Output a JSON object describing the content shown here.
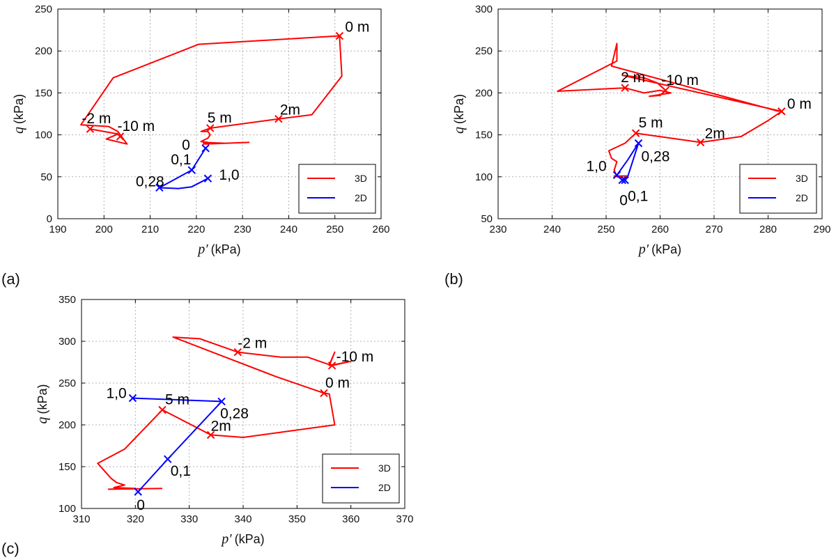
{
  "chart_data": [
    {
      "type": "line",
      "panel_label": "(a)",
      "xlabel_var": "p′",
      "xlabel_unit": "(kPa)",
      "ylabel_var": "q",
      "ylabel_unit": "(kPa)",
      "xlim": [
        190,
        260
      ],
      "ylim": [
        0,
        250
      ],
      "xticks": [
        190,
        200,
        210,
        220,
        230,
        240,
        250,
        260
      ],
      "yticks": [
        0,
        50,
        100,
        150,
        200,
        250
      ],
      "grid": true,
      "legend_position": "lower-right",
      "legend": [
        {
          "name": "3D",
          "color": "#ff0000"
        },
        {
          "name": "2D",
          "color": "#0000ff"
        }
      ],
      "series": [
        {
          "name": "3D",
          "color": "#ff0000",
          "points": [
            [
              231.5,
              91
            ],
            [
              222,
              89
            ],
            [
              226,
              90
            ],
            [
              221.5,
              91
            ],
            [
              224.5,
              90
            ],
            [
              221.5,
              89
            ],
            [
              222.5,
              91
            ],
            [
              221,
              92
            ],
            [
              222.5,
              96
            ],
            [
              223,
              100
            ],
            [
              222.5,
              104
            ],
            [
              221,
              104
            ],
            [
              222.5,
              107
            ],
            [
              223,
              108
            ],
            [
              237.8,
              119
            ],
            [
              245,
              124
            ],
            [
              251.5,
              170
            ],
            [
              251,
              218
            ],
            [
              220.5,
              208
            ],
            [
              202,
              168
            ],
            [
              195,
              112
            ],
            [
              201,
              110
            ],
            [
              203,
              104
            ],
            [
              205,
              89
            ],
            [
              200.5,
              95
            ],
            [
              203,
              101
            ],
            [
              198,
              106
            ],
            [
              197,
              107
            ]
          ]
        },
        {
          "name": "2D",
          "color": "#0000ff",
          "points": [
            [
              222,
              84
            ],
            [
              219,
              58
            ],
            [
              212,
              37
            ],
            [
              216,
              36
            ],
            [
              219,
              38
            ],
            [
              222.5,
              48
            ]
          ]
        }
      ],
      "markers": [
        {
          "x": 251,
          "y": 218,
          "color": "#ff0000",
          "label": "0 m"
        },
        {
          "x": 237.8,
          "y": 119,
          "color": "#ff0000",
          "label": "2m"
        },
        {
          "x": 223,
          "y": 108,
          "color": "#ff0000",
          "label": "5 m"
        },
        {
          "x": 197,
          "y": 107,
          "color": "#ff0000",
          "label": "-2 m"
        },
        {
          "x": 203.5,
          "y": 98,
          "color": "#ff0000",
          "label": "-10 m"
        },
        {
          "x": 222,
          "y": 84,
          "color": "#0000ff",
          "label": "0"
        },
        {
          "x": 219,
          "y": 58,
          "color": "#0000ff",
          "label": "0,1"
        },
        {
          "x": 212,
          "y": 37,
          "color": "#0000ff",
          "label": "0,28"
        },
        {
          "x": 222.5,
          "y": 48,
          "color": "#0000ff",
          "label": "1,0"
        }
      ]
    },
    {
      "type": "line",
      "panel_label": "(b)",
      "xlabel_var": "p′",
      "xlabel_unit": "(kPa)",
      "ylabel_var": "q",
      "ylabel_unit": "(kPa)",
      "xlim": [
        230,
        290
      ],
      "ylim": [
        50,
        300
      ],
      "xticks": [
        230,
        240,
        250,
        260,
        270,
        280,
        290
      ],
      "yticks": [
        50,
        100,
        150,
        200,
        250,
        300
      ],
      "grid": true,
      "legend_position": "lower-right",
      "legend": [
        {
          "name": "3D",
          "color": "#ff0000"
        },
        {
          "name": "2D",
          "color": "#0000ff"
        }
      ],
      "series": [
        {
          "name": "3D",
          "color": "#ff0000",
          "points": [
            [
              254,
              101
            ],
            [
              251.5,
              101
            ],
            [
              253,
              99
            ],
            [
              252,
              100
            ],
            [
              251.5,
              108
            ],
            [
              252,
              118
            ],
            [
              251,
              122
            ],
            [
              250.5,
              131
            ],
            [
              253.5,
              140
            ],
            [
              255.5,
              152
            ],
            [
              267.5,
              141
            ],
            [
              275,
              148
            ],
            [
              280,
              167
            ],
            [
              282.5,
              178
            ],
            [
              253,
              221
            ],
            [
              257,
              218
            ],
            [
              259.5,
              212
            ],
            [
              261,
              203
            ],
            [
              260,
              197
            ],
            [
              258,
              196
            ],
            [
              262,
              200
            ],
            [
              260,
              203
            ],
            [
              257,
              200
            ],
            [
              253.5,
              206
            ],
            [
              241,
              202
            ],
            [
              252,
              238
            ],
            [
              252,
              259
            ],
            [
              251,
              232
            ],
            [
              282,
              178
            ]
          ]
        },
        {
          "name": "2D",
          "color": "#0000ff",
          "points": [
            [
              256,
              140
            ],
            [
              254,
              120
            ],
            [
              252,
              102
            ],
            [
              253,
              96
            ],
            [
              254,
              100
            ],
            [
              256,
              140
            ]
          ]
        }
      ],
      "markers": [
        {
          "x": 282.5,
          "y": 178,
          "color": "#ff0000",
          "label": "0 m"
        },
        {
          "x": 267.5,
          "y": 141,
          "color": "#ff0000",
          "label": "2m"
        },
        {
          "x": 255.5,
          "y": 152,
          "color": "#ff0000",
          "label": "5 m"
        },
        {
          "x": 253.5,
          "y": 206,
          "color": "#ff0000",
          "label": "2 m"
        },
        {
          "x": 261,
          "y": 203,
          "color": "#ff0000",
          "label": "-10 m"
        },
        {
          "x": 256,
          "y": 140,
          "color": "#0000ff",
          "label": "0,28"
        },
        {
          "x": 252,
          "y": 102,
          "color": "#0000ff",
          "label": "1,0"
        },
        {
          "x": 253.5,
          "y": 96,
          "color": "#0000ff",
          "label": "0,1"
        },
        {
          "x": 253,
          "y": 96,
          "color": "#0000ff",
          "label": "0"
        }
      ]
    },
    {
      "type": "line",
      "panel_label": "(c)",
      "xlabel_var": "p′",
      "xlabel_unit": "(kPa)",
      "ylabel_var": "q",
      "ylabel_unit": "(kPa)",
      "xlim": [
        310,
        370
      ],
      "ylim": [
        100,
        350
      ],
      "xticks": [
        310,
        320,
        330,
        340,
        350,
        360,
        370
      ],
      "yticks": [
        100,
        150,
        200,
        250,
        300,
        350
      ],
      "grid": true,
      "legend_position": "lower-right",
      "legend": [
        {
          "name": "3D",
          "color": "#ff0000"
        },
        {
          "name": "2D",
          "color": "#0000ff"
        }
      ],
      "series": [
        {
          "name": "3D",
          "color": "#ff0000",
          "points": [
            [
              325,
              124
            ],
            [
              315,
              123
            ],
            [
              320,
              124
            ],
            [
              316,
              125
            ],
            [
              318,
              128
            ],
            [
              316.5,
              131
            ],
            [
              315.5,
              136
            ],
            [
              313,
              154
            ],
            [
              318,
              171
            ],
            [
              325,
              218
            ],
            [
              334,
              188
            ],
            [
              340,
              185
            ],
            [
              357,
              200
            ],
            [
              356,
              237
            ],
            [
              355,
              238
            ],
            [
              346,
              258
            ],
            [
              327,
              305
            ],
            [
              332,
              303
            ],
            [
              339,
              287
            ],
            [
              347,
              281
            ],
            [
              352,
              281
            ],
            [
              356,
              272
            ],
            [
              357,
              287
            ],
            [
              356,
              271
            ],
            [
              360,
              276
            ],
            [
              356.5,
              271
            ]
          ]
        },
        {
          "name": "2D",
          "color": "#0000ff",
          "points": [
            [
              319.5,
              232
            ],
            [
              336,
              228
            ],
            [
              326,
              159
            ],
            [
              320.5,
              120
            ]
          ]
        }
      ],
      "markers": [
        {
          "x": 325,
          "y": 218,
          "color": "#ff0000",
          "label": "5 m"
        },
        {
          "x": 334,
          "y": 188,
          "color": "#ff0000",
          "label": "2m"
        },
        {
          "x": 355,
          "y": 238,
          "color": "#ff0000",
          "label": "0 m"
        },
        {
          "x": 339,
          "y": 287,
          "color": "#ff0000",
          "label": "-2 m"
        },
        {
          "x": 356.5,
          "y": 271,
          "color": "#ff0000",
          "label": "-10 m"
        },
        {
          "x": 319.5,
          "y": 232,
          "color": "#0000ff",
          "label": "1,0"
        },
        {
          "x": 336,
          "y": 228,
          "color": "#0000ff",
          "label": "0,28"
        },
        {
          "x": 326,
          "y": 159,
          "color": "#0000ff",
          "label": "0,1"
        },
        {
          "x": 320.5,
          "y": 120,
          "color": "#0000ff",
          "label": "0"
        }
      ]
    }
  ]
}
